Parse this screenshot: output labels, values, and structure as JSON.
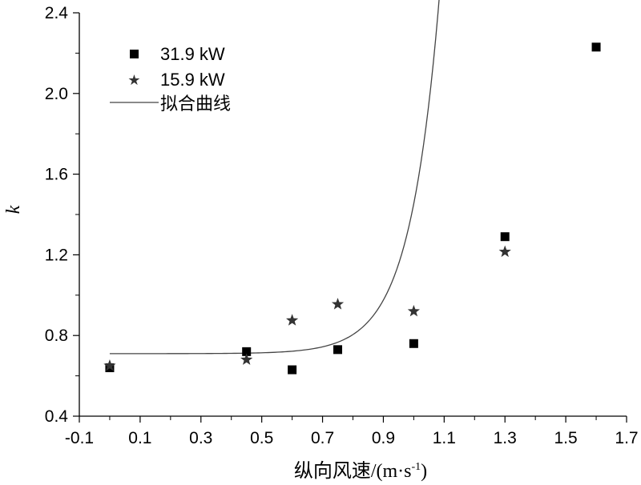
{
  "chart_data": {
    "type": "scatter",
    "xlabel": "纵向风速/(m·s",
    "xlabel_exponent": "-1",
    "xlabel_close": ")",
    "ylabel": "k",
    "xlim": [
      -0.1,
      1.7
    ],
    "ylim": [
      0.4,
      2.4
    ],
    "x_ticks": [
      "-0.1",
      "0.1",
      "0.3",
      "0.5",
      "0.7",
      "0.9",
      "1.1",
      "1.3",
      "1.5",
      "1.7"
    ],
    "y_ticks": [
      "0.4",
      "0.8",
      "1.2",
      "1.6",
      "2.0",
      "2.4"
    ],
    "legend_position": "top-left",
    "series": [
      {
        "name": "31.9 kW",
        "marker": "square",
        "color": "#000000",
        "points": [
          {
            "x": 0.0,
            "y": 0.64
          },
          {
            "x": 0.45,
            "y": 0.72
          },
          {
            "x": 0.6,
            "y": 0.63
          },
          {
            "x": 0.75,
            "y": 0.73
          },
          {
            "x": 1.0,
            "y": 0.76
          },
          {
            "x": 1.3,
            "y": 1.29
          },
          {
            "x": 1.6,
            "y": 2.23
          }
        ]
      },
      {
        "name": "15.9 kW",
        "marker": "star",
        "color": "#333333",
        "points": [
          {
            "x": 0.0,
            "y": 0.65
          },
          {
            "x": 0.45,
            "y": 0.68
          },
          {
            "x": 0.6,
            "y": 0.875
          },
          {
            "x": 0.75,
            "y": 0.955
          },
          {
            "x": 1.0,
            "y": 0.92
          },
          {
            "x": 1.3,
            "y": 1.215
          }
        ]
      }
    ],
    "fit": {
      "name": "拟合曲线",
      "color": "#444444",
      "y0": 0.71,
      "a": 2.5e-05,
      "b": 10.3,
      "x_start": 0.0,
      "x_end": 1.6
    }
  }
}
